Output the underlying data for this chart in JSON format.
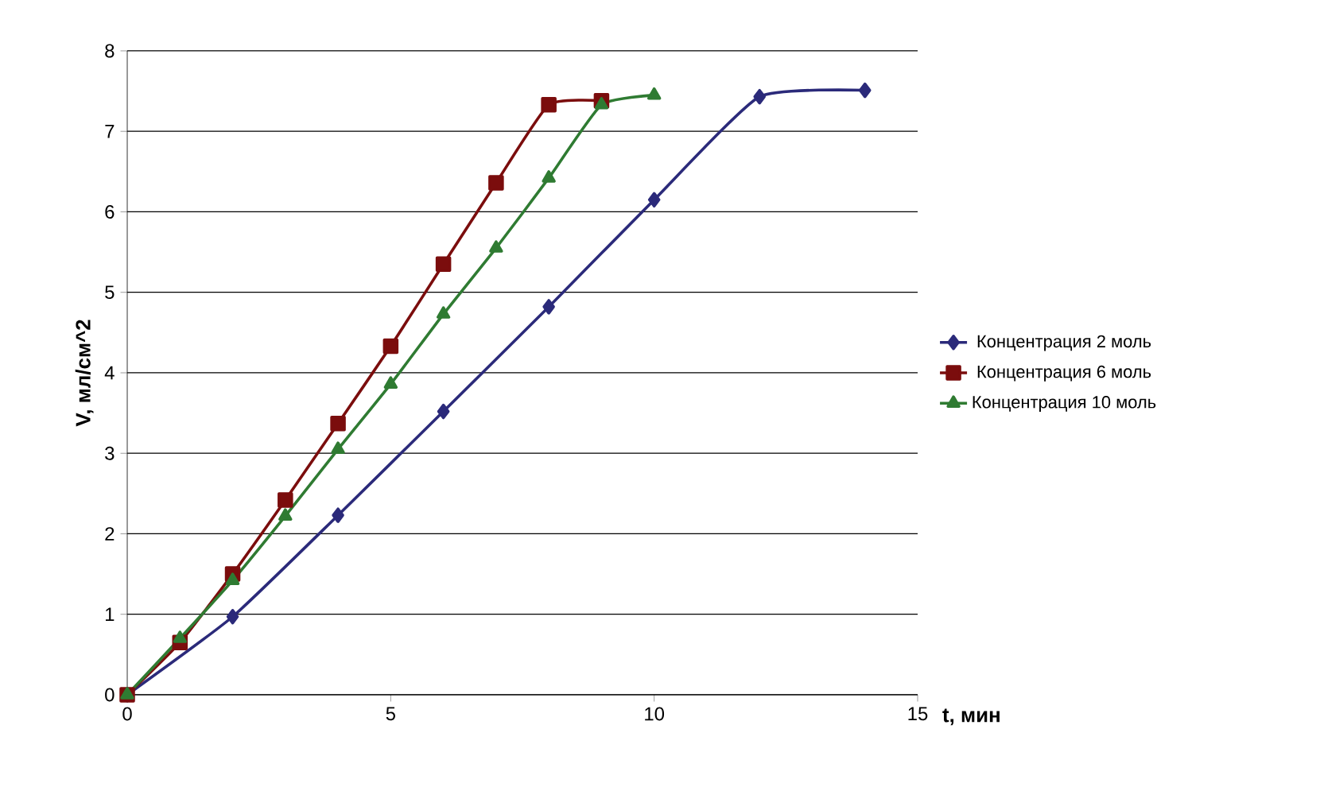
{
  "chart_data": {
    "type": "line",
    "xlabel": "t, мин",
    "ylabel": "V, мл/см^2",
    "xlim": [
      0,
      15
    ],
    "xticks": [
      0,
      5,
      10,
      15
    ],
    "ylim": [
      0,
      8
    ],
    "yticks": [
      0,
      1,
      2,
      3,
      4,
      5,
      6,
      7,
      8
    ],
    "grid": "y",
    "legend": "right",
    "series": [
      {
        "name": "Концентрация 2 моль",
        "color": "#2b2a7a",
        "marker": "diamond",
        "x": [
          0,
          2,
          4,
          6,
          8,
          10,
          12,
          14
        ],
        "values": [
          0,
          0.97,
          2.23,
          3.52,
          4.82,
          6.15,
          7.43,
          7.51
        ]
      },
      {
        "name": "Концентрация 6 моль",
        "color": "#7b0d0d",
        "marker": "square",
        "x": [
          0,
          1,
          2,
          3,
          4,
          5,
          6,
          7,
          8,
          9
        ],
        "values": [
          0,
          0.65,
          1.5,
          2.42,
          3.37,
          4.33,
          5.35,
          6.36,
          7.33,
          7.38
        ]
      },
      {
        "name": "Концентрация 10 моль",
        "color": "#2f7b32",
        "marker": "triangle",
        "x": [
          0,
          1,
          2,
          3,
          4,
          5,
          6,
          7,
          8,
          9,
          10
        ],
        "values": [
          0,
          0.7,
          1.42,
          2.22,
          3.05,
          3.86,
          4.73,
          5.55,
          6.42,
          7.33,
          7.45
        ]
      }
    ]
  }
}
